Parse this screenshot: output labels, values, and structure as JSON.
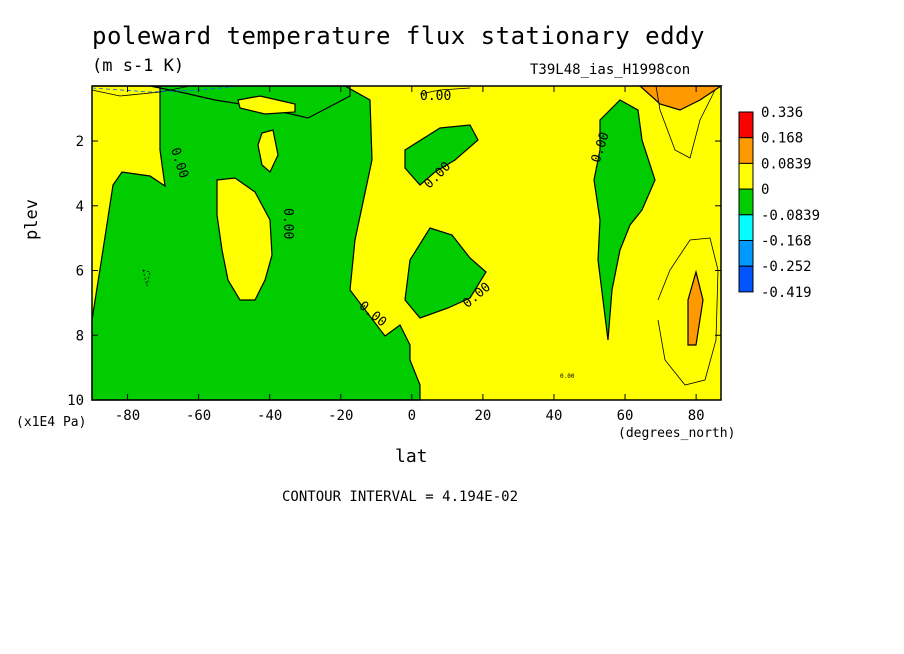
{
  "chart_data": {
    "type": "heatmap",
    "title": "poleward temperature flux stationary eddy",
    "units": "(m s-1 K)",
    "run_name": "T39L48_ias_H1998con",
    "xlabel": "lat",
    "ylabel": "plev",
    "x_unit": "(degrees_north)",
    "y_unit": "(x1E4 Pa)",
    "xlim": [
      -90,
      87
    ],
    "ylim": [
      10,
      0.3
    ],
    "x_ticks": [
      -80,
      -60,
      -40,
      -20,
      0,
      20,
      40,
      60,
      80
    ],
    "y_ticks": [
      2,
      4,
      6,
      8,
      10
    ],
    "contour_interval_text": "CONTOUR INTERVAL = 4.194E-02",
    "contour_labels": [
      "0.00",
      "0.00",
      "0.00",
      "0.00",
      "0.00",
      "0.00",
      "0.00",
      "0.00"
    ],
    "legend": {
      "levels": [
        "0.336",
        "0.168",
        "0.0839",
        "0",
        "-0.0839",
        "-0.168",
        "-0.252",
        "-0.419"
      ],
      "colors": [
        "#ff0000",
        "#ff9900",
        "#ffff00",
        "#00cc00",
        "#00ffff",
        "#0099ff",
        "#0055ff"
      ]
    },
    "colors": {
      "positive": "#ffff00",
      "negative": "#00cc00",
      "strong_positive": "#ff9900"
    }
  }
}
